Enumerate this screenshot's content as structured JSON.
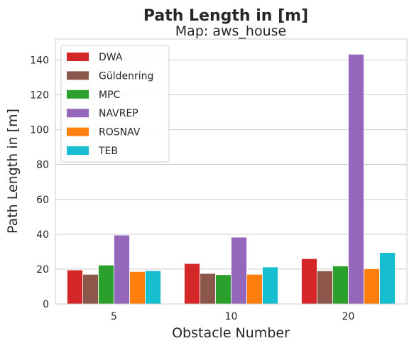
{
  "chart_data": {
    "type": "bar",
    "title": "Path Length in [m]",
    "subtitle": "Map: aws_house",
    "xlabel": "Obstacle Number",
    "ylabel": "Path Length in [m]",
    "categories": [
      "5",
      "10",
      "20"
    ],
    "ylim": [
      0,
      152
    ],
    "yticks": [
      0,
      20,
      40,
      60,
      80,
      100,
      120,
      140
    ],
    "grid": true,
    "legend_position": "top-left",
    "series": [
      {
        "name": "DWA",
        "color": "#d62728",
        "values": [
          19.5,
          23.2,
          26.0
        ]
      },
      {
        "name": "Güldenring",
        "color": "#8c564b",
        "values": [
          17.0,
          17.5,
          19.0
        ]
      },
      {
        "name": "MPC",
        "color": "#2ca02c",
        "values": [
          22.3,
          16.8,
          21.8
        ]
      },
      {
        "name": "NAVREP",
        "color": "#9467bd",
        "values": [
          39.5,
          38.3,
          143.3
        ]
      },
      {
        "name": "ROSNAV",
        "color": "#ff7f0e",
        "values": [
          18.6,
          17.0,
          20.2
        ]
      },
      {
        "name": "TEB",
        "color": "#17becf",
        "values": [
          19.1,
          21.2,
          29.5
        ]
      }
    ]
  }
}
